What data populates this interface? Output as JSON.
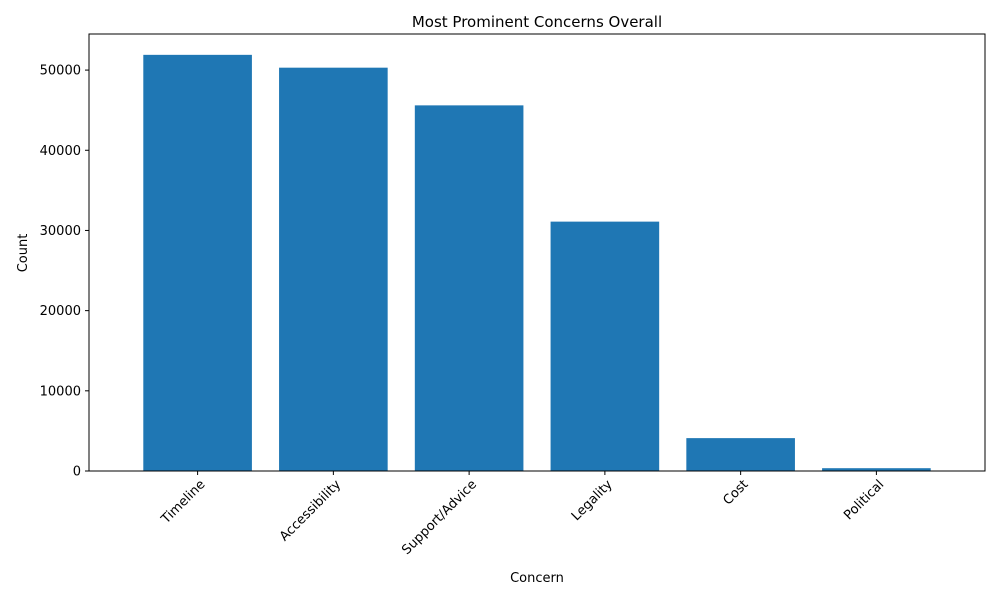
{
  "chart_data": {
    "type": "bar",
    "title": "Most Prominent Concerns Overall",
    "xlabel": "Concern",
    "ylabel": "Count",
    "categories": [
      "Timeline",
      "Accessibility",
      "Support/Advice",
      "Legality",
      "Cost",
      "Political"
    ],
    "values": [
      51900,
      50300,
      45600,
      31100,
      4100,
      350
    ],
    "ylim": [
      0,
      54500
    ],
    "yticks": [
      0,
      10000,
      20000,
      30000,
      40000,
      50000
    ],
    "ytick_labels": [
      "0",
      "10000",
      "20000",
      "30000",
      "40000",
      "50000"
    ],
    "bar_color": "#1f77b4",
    "grid": false,
    "xtick_rotation_deg": 45
  }
}
